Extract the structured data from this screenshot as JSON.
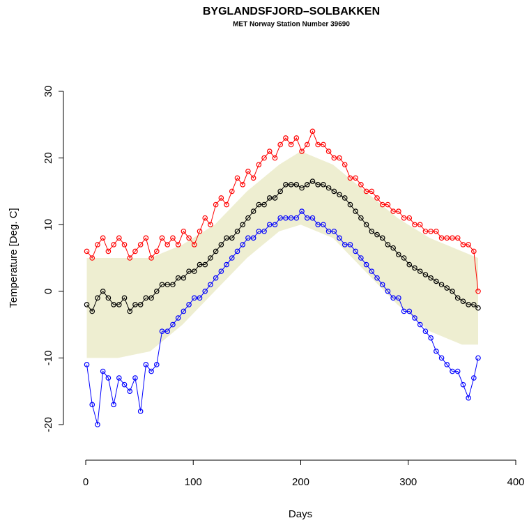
{
  "chart_data": {
    "type": "scatter",
    "title": "BYGLANDSFJORD–SOLBAKKEN",
    "subtitle": "MET Norway Station Number 39690",
    "x_label": "Days",
    "y_label": "Temperature [Deg. C]",
    "xlim": [
      0,
      400
    ],
    "xticks": [
      0,
      100,
      200,
      300,
      400
    ],
    "ylim": [
      -20,
      30
    ],
    "yticks": [
      -20,
      -10,
      0,
      10,
      20,
      30
    ],
    "x": [
      1,
      6,
      11,
      16,
      21,
      26,
      31,
      36,
      41,
      46,
      51,
      56,
      61,
      66,
      71,
      76,
      81,
      86,
      91,
      96,
      101,
      106,
      111,
      116,
      121,
      126,
      131,
      136,
      141,
      146,
      151,
      156,
      161,
      166,
      171,
      176,
      181,
      186,
      191,
      196,
      201,
      206,
      211,
      216,
      221,
      226,
      231,
      236,
      241,
      246,
      251,
      256,
      261,
      266,
      271,
      276,
      281,
      286,
      291,
      296,
      301,
      306,
      311,
      316,
      321,
      326,
      331,
      336,
      341,
      346,
      351,
      356,
      361,
      365
    ],
    "band": {
      "color": "#eeeed1",
      "x": [
        1,
        30,
        60,
        90,
        120,
        150,
        180,
        200,
        230,
        260,
        290,
        320,
        350,
        365
      ],
      "lower": [
        -10,
        -10,
        -9,
        -5,
        0,
        5,
        9,
        10,
        8,
        3,
        -2,
        -6,
        -8,
        -8
      ],
      "upper": [
        5,
        5,
        5,
        7,
        10,
        15,
        19,
        21,
        19,
        15,
        11,
        8,
        6,
        5
      ]
    },
    "series": [
      {
        "color": "#ff0000",
        "values": [
          6,
          5,
          7,
          8,
          6,
          7,
          8,
          7,
          5,
          6,
          7,
          8,
          5,
          6,
          8,
          7,
          8,
          7,
          9,
          8,
          7,
          9,
          11,
          10,
          13,
          14,
          13,
          15,
          17,
          16,
          18,
          17,
          19,
          20,
          21,
          20,
          22,
          23,
          22,
          23,
          21,
          22,
          24,
          22,
          22,
          21,
          20,
          20,
          19,
          17,
          17,
          16,
          15,
          15,
          14,
          13,
          13,
          12,
          12,
          11,
          11,
          10,
          10,
          9,
          9,
          9,
          8,
          8,
          8,
          8,
          7,
          7,
          6,
          0
        ]
      },
      {
        "color": "#000000",
        "values": [
          -2,
          -3,
          -1,
          0,
          -1,
          -2,
          -2,
          -1,
          -3,
          -2,
          -2,
          -1,
          -1,
          0,
          1,
          1,
          1,
          2,
          2,
          3,
          3,
          4,
          4,
          5,
          6,
          7,
          8,
          8,
          9,
          10,
          11,
          12,
          13,
          13,
          14,
          14,
          15,
          16,
          16,
          16,
          15.5,
          16,
          16.5,
          16,
          16,
          15.5,
          15,
          14.5,
          14,
          13,
          12,
          11,
          10,
          9,
          8.5,
          8,
          7,
          6.5,
          5.5,
          5,
          4,
          3.5,
          3,
          2.5,
          2,
          1.5,
          1,
          0.5,
          0,
          -1,
          -1.5,
          -2,
          -2,
          -2.5
        ]
      },
      {
        "color": "#0000ff",
        "values": [
          -11,
          -17,
          -20,
          -12,
          -13,
          -17,
          -13,
          -14,
          -15,
          -13,
          -18,
          -11,
          -12,
          -11,
          -6,
          -6,
          -5,
          -4,
          -3,
          -2,
          -1,
          -1,
          0,
          1,
          2,
          3,
          4,
          5,
          6,
          7,
          8,
          8,
          9,
          9,
          10,
          10,
          11,
          11,
          11,
          11,
          12,
          11,
          11,
          10,
          10,
          9,
          9,
          8,
          7,
          7,
          6,
          5,
          4,
          3,
          2,
          1,
          0,
          -1,
          -1,
          -3,
          -3,
          -4,
          -5,
          -6,
          -7,
          -9,
          -10,
          -11,
          -12,
          -12,
          -14,
          -16,
          -13,
          -10
        ]
      }
    ]
  }
}
